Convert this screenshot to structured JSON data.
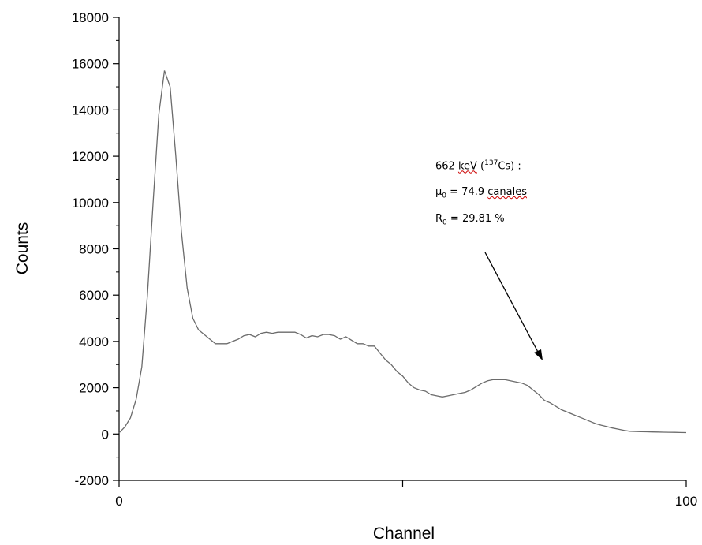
{
  "chart_data": {
    "type": "line",
    "title": "",
    "xlabel": "Channel",
    "ylabel": "Counts",
    "xlim": [
      0,
      100
    ],
    "ylim": [
      -2000,
      18000
    ],
    "x_ticks": [
      0,
      100
    ],
    "y_ticks": [
      -2000,
      0,
      2000,
      4000,
      6000,
      8000,
      10000,
      12000,
      14000,
      16000,
      18000
    ],
    "grid": false,
    "line_color": "#6b6b6b",
    "series": [
      {
        "x": [
          0,
          1,
          2,
          3,
          4,
          5,
          6,
          7,
          8,
          9,
          10,
          11,
          12,
          13,
          14,
          15,
          16,
          17,
          18,
          19,
          20,
          21,
          22,
          23,
          24,
          25,
          26,
          27,
          28,
          29,
          30,
          31,
          32,
          33,
          34,
          35,
          36,
          37,
          38,
          39,
          40,
          41,
          42,
          43,
          44,
          45,
          46,
          47,
          48,
          49,
          50,
          51,
          52,
          53,
          54,
          55,
          56,
          57,
          58,
          59,
          60,
          61,
          62,
          63,
          64,
          65,
          66,
          67,
          68,
          69,
          70,
          71,
          72,
          73,
          74,
          75,
          76,
          77,
          78,
          79,
          80,
          81,
          82,
          83,
          84,
          85,
          86,
          87,
          88,
          89,
          90,
          91,
          92,
          93,
          94,
          95,
          96,
          97,
          98,
          99,
          100
        ],
        "values": [
          50,
          300,
          700,
          1500,
          2900,
          6000,
          10000,
          13800,
          15700,
          15000,
          12000,
          8700,
          6300,
          5000,
          4500,
          4300,
          4100,
          3900,
          3900,
          3900,
          4000,
          4100,
          4250,
          4300,
          4200,
          4350,
          4400,
          4350,
          4400,
          4400,
          4400,
          4400,
          4300,
          4150,
          4250,
          4200,
          4300,
          4300,
          4250,
          4100,
          4200,
          4050,
          3900,
          3900,
          3800,
          3800,
          3500,
          3200,
          3000,
          2700,
          2500,
          2200,
          2000,
          1900,
          1850,
          1700,
          1650,
          1600,
          1650,
          1700,
          1750,
          1800,
          1900,
          2050,
          2200,
          2300,
          2350,
          2350,
          2350,
          2300,
          2250,
          2200,
          2100,
          1900,
          1700,
          1450,
          1350,
          1200,
          1050,
          950,
          850,
          750,
          650,
          550,
          450,
          380,
          320,
          260,
          210,
          160,
          120,
          110,
          100,
          95,
          90,
          85,
          80,
          75,
          70,
          65,
          60
        ]
      }
    ],
    "annotations": {
      "line1_a": "662 ",
      "line1_b": "keV",
      "line1_c": " (",
      "line1_sup": "137",
      "line1_d": "Cs) :",
      "line2_mu": "μ",
      "line2_sub": "0",
      "line2_a": " = 74.9 ",
      "line2_b": "canales",
      "line3_r": "R",
      "line3_sub": "0",
      "line3_a": " = 29.81 %"
    }
  }
}
